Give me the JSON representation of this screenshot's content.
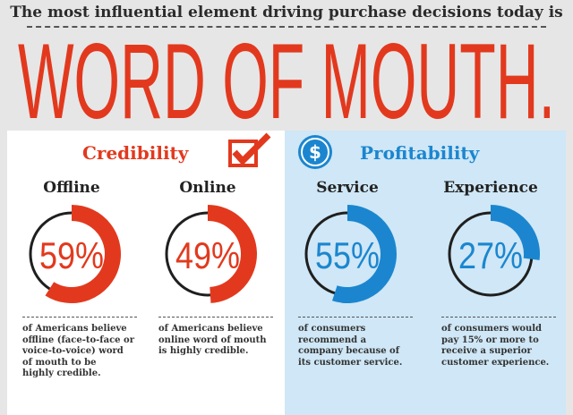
{
  "header": {
    "subtitle": "The most influential element driving purchase decisions today is",
    "title": "WORD OF MOUTH."
  },
  "colors": {
    "red": "#e2391e",
    "blue": "#1b86cf",
    "ring_dark": "#1f1f1f",
    "panel_blue": "#cfe7f6"
  },
  "icons": {
    "credibility": "checkbox-check-icon",
    "profitability": "dollar-circle-icon"
  },
  "sections": {
    "credibility": {
      "title": "Credibility",
      "items": [
        {
          "label": "Offline",
          "percent_text": "59%",
          "percent": 59,
          "description": [
            "of Americans believe",
            "offline (face-to-face or",
            "voice-to-voice) word",
            "of mouth to be",
            "highly credible."
          ]
        },
        {
          "label": "Online",
          "percent_text": "49%",
          "percent": 49,
          "description": [
            "of Americans believe",
            "online word of mouth",
            "is highly credible."
          ]
        }
      ]
    },
    "profitability": {
      "title": "Profitability",
      "items": [
        {
          "label": "Service",
          "percent_text": "55%",
          "percent": 55,
          "description": [
            "of consumers",
            "recommend a",
            "company because of",
            "its customer service."
          ]
        },
        {
          "label": "Experience",
          "percent_text": "27%",
          "percent": 27,
          "description": [
            "of consumers would",
            "pay 15% or more to",
            "receive a superior",
            "customer experience."
          ]
        }
      ]
    }
  }
}
